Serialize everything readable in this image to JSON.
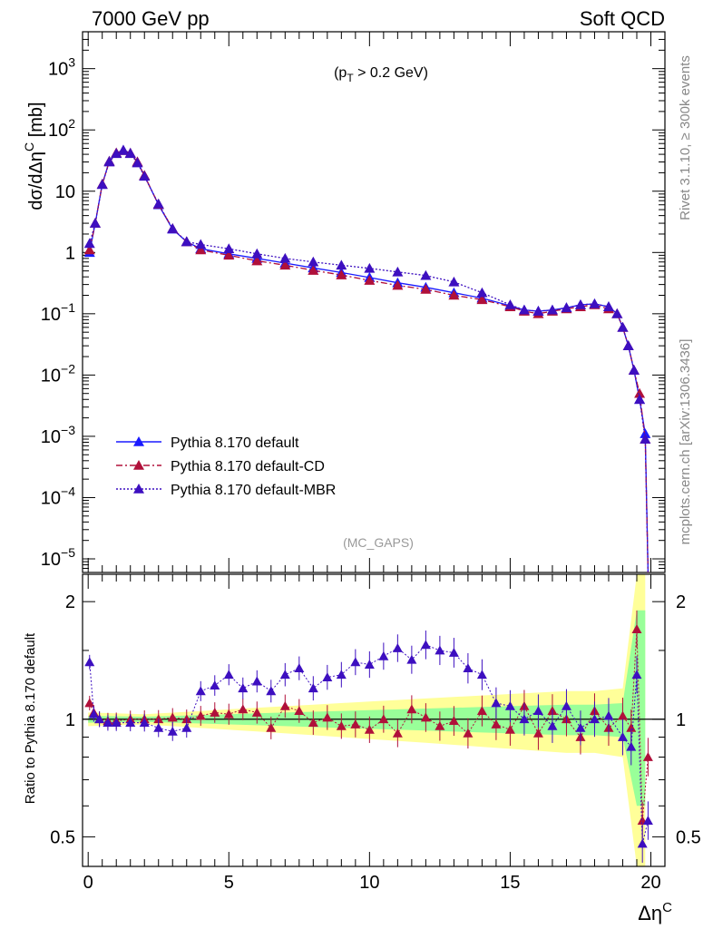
{
  "header": {
    "left": "7000 GeV pp",
    "right": "Soft QCD"
  },
  "side_labels": {
    "rivet": "Rivet 3.1.10, ≥ 300k events",
    "mcplots": "mcplots.cern.ch [arXiv:1306.3436]"
  },
  "chart_data": [
    {
      "type": "line",
      "panel": "main",
      "title": "",
      "annotation": "(p_T > 0.2 GeV)",
      "watermark": "(MC_GAPS)",
      "xlabel": "Δη^C",
      "ylabel": "dσ/dΔη^C [mb]",
      "xlim": [
        -0.2,
        20.5
      ],
      "ylim": [
        6e-06,
        4000
      ],
      "yscale": "log",
      "yticks": [
        {
          "value": 1e-05,
          "base": "10",
          "exp": "−5"
        },
        {
          "value": 0.0001,
          "base": "10",
          "exp": "−4"
        },
        {
          "value": 0.001,
          "base": "10",
          "exp": "−3"
        },
        {
          "value": 0.01,
          "base": "10",
          "exp": "−2"
        },
        {
          "value": 0.1,
          "base": "10",
          "exp": "−1"
        },
        {
          "value": 1,
          "base": "1",
          "exp": ""
        },
        {
          "value": 10,
          "base": "10",
          "exp": ""
        },
        {
          "value": 100,
          "base": "10",
          "exp": "2"
        },
        {
          "value": 1000,
          "base": "10",
          "exp": "3"
        }
      ],
      "legend": {
        "placement": "lower-left"
      },
      "series": [
        {
          "name": "Pythia 8.170 default",
          "color": "#1a1aff",
          "dash": "solid",
          "x": [
            0.05,
            0.25,
            0.5,
            0.75,
            1.0,
            1.25,
            1.5,
            1.75,
            2.0,
            2.5,
            3.0,
            3.5,
            4.0,
            5.0,
            6.0,
            7.0,
            8.0,
            9.0,
            10.0,
            11.0,
            12.0,
            13.0,
            14.0,
            15.0,
            15.5,
            16.0,
            16.5,
            17.0,
            17.5,
            18.0,
            18.5,
            18.8,
            19.0,
            19.2,
            19.4,
            19.6,
            19.8,
            19.9
          ],
          "y": [
            1.0,
            3.0,
            13.0,
            31.0,
            42.0,
            47.0,
            42.0,
            30.0,
            18.0,
            6.0,
            2.4,
            1.5,
            1.15,
            0.95,
            0.8,
            0.67,
            0.56,
            0.47,
            0.39,
            0.32,
            0.27,
            0.22,
            0.18,
            0.135,
            0.115,
            0.11,
            0.115,
            0.125,
            0.14,
            0.145,
            0.13,
            0.1,
            0.06,
            0.03,
            0.012,
            0.004,
            0.0011,
            6e-06
          ]
        },
        {
          "name": "Pythia 8.170 default-CD",
          "color": "#b0103a",
          "dash": "dashdot",
          "x": [
            0.05,
            0.25,
            0.5,
            0.75,
            1.0,
            1.25,
            1.5,
            1.75,
            2.0,
            2.5,
            3.0,
            3.5,
            4.0,
            5.0,
            6.0,
            7.0,
            8.0,
            9.0,
            10.0,
            11.0,
            12.0,
            13.0,
            14.0,
            15.0,
            15.5,
            16.0,
            16.5,
            17.0,
            17.5,
            18.0,
            18.5,
            18.8,
            19.0,
            19.2,
            19.4,
            19.6,
            19.8,
            19.9
          ],
          "y": [
            1.1,
            3.0,
            13.0,
            30.5,
            42.0,
            46.0,
            41.5,
            30.0,
            18.0,
            6.1,
            2.45,
            1.5,
            1.1,
            0.9,
            0.73,
            0.62,
            0.51,
            0.43,
            0.35,
            0.29,
            0.25,
            0.2,
            0.17,
            0.13,
            0.11,
            0.1,
            0.11,
            0.12,
            0.13,
            0.14,
            0.12,
            0.1,
            0.06,
            0.03,
            0.012,
            0.005,
            0.0009,
            6e-06
          ]
        },
        {
          "name": "Pythia 8.170 default-MBR",
          "color": "#3d0fc0",
          "dash": "dotted",
          "x": [
            0.05,
            0.25,
            0.5,
            0.75,
            1.0,
            1.25,
            1.5,
            1.75,
            2.0,
            2.5,
            3.0,
            3.5,
            4.0,
            5.0,
            6.0,
            7.0,
            8.0,
            9.0,
            10.0,
            11.0,
            12.0,
            13.0,
            14.0,
            15.0,
            15.5,
            16.0,
            16.5,
            17.0,
            17.5,
            18.0,
            18.5,
            18.8,
            19.0,
            19.2,
            19.4,
            19.6,
            19.8,
            19.9
          ],
          "y": [
            1.4,
            3.0,
            12.8,
            30.0,
            41.0,
            46.0,
            41.0,
            29.0,
            17.5,
            6.2,
            2.45,
            1.5,
            1.35,
            1.15,
            0.95,
            0.8,
            0.7,
            0.62,
            0.55,
            0.48,
            0.42,
            0.33,
            0.22,
            0.14,
            0.115,
            0.11,
            0.115,
            0.125,
            0.14,
            0.145,
            0.13,
            0.1,
            0.06,
            0.03,
            0.012,
            0.004,
            0.0009,
            6e-06
          ]
        }
      ]
    },
    {
      "type": "line",
      "panel": "ratio",
      "ylabel": "Ratio to Pythia 8.170 default",
      "xlabel": "Δη^C",
      "xlim": [
        -0.2,
        20.5
      ],
      "ylim": [
        0.42,
        2.35
      ],
      "yscale": "log",
      "xticks": [
        0,
        5,
        10,
        15,
        20
      ],
      "yticks": [
        0.5,
        1,
        2
      ],
      "ytick_labels": [
        "0.5",
        "1",
        "2"
      ],
      "bands": [
        {
          "name": "",
          "color": "#ffff99",
          "x": [
            0,
            2,
            4,
            6,
            8,
            10,
            12,
            14,
            15,
            16,
            17,
            18,
            19,
            19.5,
            19.8
          ],
          "lo": [
            0.96,
            0.97,
            0.95,
            0.93,
            0.91,
            0.89,
            0.87,
            0.85,
            0.84,
            0.83,
            0.82,
            0.82,
            0.8,
            0.4,
            0.4
          ],
          "hi": [
            1.04,
            1.03,
            1.05,
            1.07,
            1.09,
            1.11,
            1.13,
            1.15,
            1.16,
            1.17,
            1.18,
            1.18,
            1.2,
            2.35,
            2.35
          ]
        },
        {
          "name": "",
          "color": "#99ff99",
          "x": [
            0,
            2,
            4,
            6,
            8,
            10,
            12,
            14,
            15,
            16,
            17,
            18,
            19,
            19.5,
            19.8
          ],
          "lo": [
            0.98,
            0.985,
            0.975,
            0.965,
            0.955,
            0.945,
            0.935,
            0.925,
            0.92,
            0.915,
            0.91,
            0.91,
            0.9,
            0.6,
            0.6
          ],
          "hi": [
            1.02,
            1.015,
            1.025,
            1.035,
            1.045,
            1.055,
            1.065,
            1.075,
            1.08,
            1.085,
            1.09,
            1.09,
            1.1,
            1.9,
            1.9
          ]
        }
      ],
      "series": [
        {
          "name": "Pythia 8.170 default-CD",
          "color": "#b0103a",
          "x": [
            0.05,
            0.2,
            0.4,
            0.7,
            1.0,
            1.5,
            2.0,
            2.5,
            3.0,
            3.5,
            4.0,
            4.5,
            5.0,
            5.5,
            6.0,
            6.5,
            7.0,
            7.5,
            8.0,
            8.5,
            9.0,
            9.5,
            10.0,
            10.5,
            11.0,
            11.5,
            12.0,
            12.5,
            13.0,
            13.5,
            14.0,
            14.5,
            15.0,
            15.5,
            16.0,
            16.5,
            17.0,
            17.5,
            18.0,
            18.5,
            19.0,
            19.3,
            19.5,
            19.7,
            19.9
          ],
          "y": [
            1.1,
            1.04,
            1.0,
            0.99,
            0.99,
            1.0,
            1.0,
            1.0,
            1.01,
            1.0,
            1.02,
            1.04,
            1.03,
            1.06,
            1.04,
            0.95,
            1.08,
            1.05,
            0.98,
            1.01,
            0.96,
            0.97,
            0.94,
            1.0,
            0.92,
            1.06,
            1.01,
            0.96,
            0.99,
            0.92,
            1.05,
            0.97,
            0.94,
            1.08,
            0.92,
            1.05,
            1.0,
            0.9,
            1.05,
            0.95,
            1.02,
            0.95,
            1.7,
            0.55,
            0.8
          ]
        },
        {
          "name": "Pythia 8.170 default-MBR",
          "color": "#3d0fc0",
          "x": [
            0.05,
            0.2,
            0.4,
            0.7,
            1.0,
            1.5,
            2.0,
            2.5,
            3.0,
            3.5,
            4.0,
            4.5,
            5.0,
            5.5,
            6.0,
            6.5,
            7.0,
            7.5,
            8.0,
            8.5,
            9.0,
            9.5,
            10.0,
            10.5,
            11.0,
            11.5,
            12.0,
            12.5,
            13.0,
            13.5,
            14.0,
            14.5,
            15.0,
            15.5,
            16.0,
            16.5,
            17.0,
            17.5,
            18.0,
            18.5,
            19.0,
            19.3,
            19.5,
            19.7,
            19.9
          ],
          "y": [
            1.4,
            1.03,
            1.0,
            0.98,
            0.98,
            0.98,
            0.98,
            0.95,
            0.93,
            0.95,
            1.18,
            1.22,
            1.3,
            1.2,
            1.25,
            1.18,
            1.3,
            1.35,
            1.2,
            1.28,
            1.3,
            1.4,
            1.38,
            1.45,
            1.52,
            1.42,
            1.55,
            1.5,
            1.48,
            1.35,
            1.3,
            1.1,
            1.08,
            1.0,
            1.05,
            0.96,
            1.08,
            0.95,
            1.0,
            1.02,
            0.9,
            0.85,
            1.3,
            0.48,
            0.55
          ]
        }
      ]
    }
  ]
}
